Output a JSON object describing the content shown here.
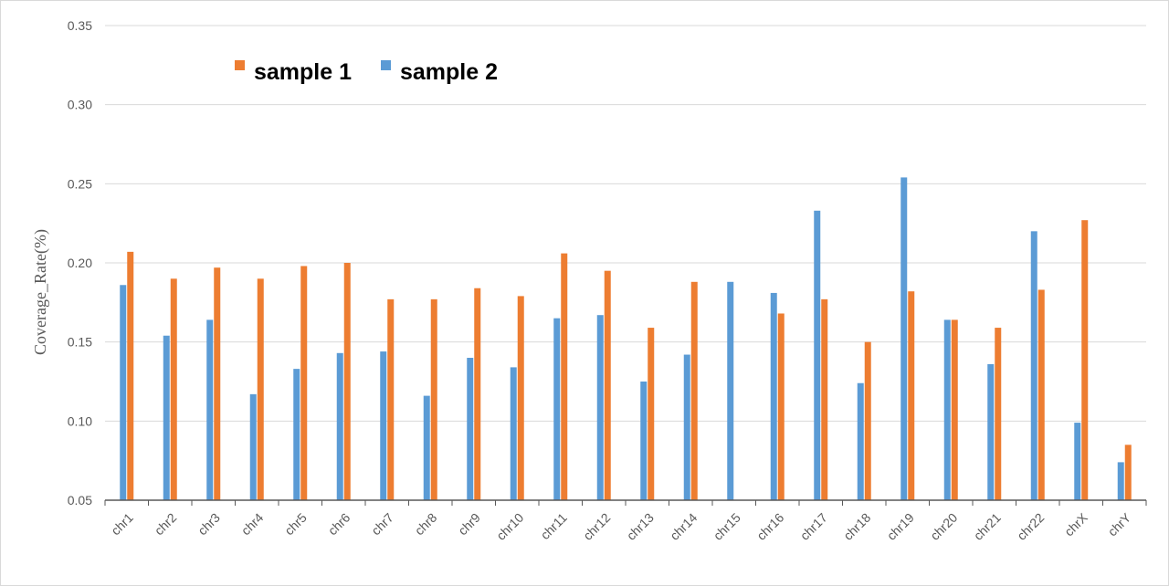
{
  "chart_data": {
    "type": "bar",
    "title": "",
    "xlabel": "",
    "ylabel": "Coverage_Rate(%)",
    "ylim": [
      0.05,
      0.35
    ],
    "yticks": [
      "0.05",
      "0.10",
      "0.15",
      "0.20",
      "0.25",
      "0.30",
      "0.35"
    ],
    "grid": true,
    "legend_position": "top-left",
    "categories": [
      "chr1",
      "chr2",
      "chr3",
      "chr4",
      "chr5",
      "chr6",
      "chr7",
      "chr8",
      "chr9",
      "chr10",
      "chr11",
      "chr12",
      "chr13",
      "chr14",
      "chr15",
      "chr16",
      "chr17",
      "chr18",
      "chr19",
      "chr20",
      "chr21",
      "chr22",
      "chrX",
      "chrY"
    ],
    "series": [
      {
        "name": "sample 2",
        "color": "#5B9BD5",
        "values": [
          0.186,
          0.154,
          0.164,
          0.117,
          0.133,
          0.143,
          0.144,
          0.116,
          0.14,
          0.134,
          0.165,
          0.167,
          0.125,
          0.142,
          0.188,
          0.181,
          0.233,
          0.124,
          0.254,
          0.164,
          0.136,
          0.22,
          0.099,
          0.074
        ]
      },
      {
        "name": "sample 1",
        "color": "#ED7D31",
        "values": [
          0.207,
          0.19,
          0.197,
          0.19,
          0.198,
          0.2,
          0.177,
          0.177,
          0.184,
          0.179,
          0.206,
          0.195,
          0.159,
          0.188,
          null,
          0.168,
          0.177,
          0.15,
          0.182,
          0.164,
          0.159,
          0.183,
          0.227,
          0.085
        ]
      }
    ],
    "legend_order": [
      "sample 1",
      "sample 2"
    ]
  }
}
